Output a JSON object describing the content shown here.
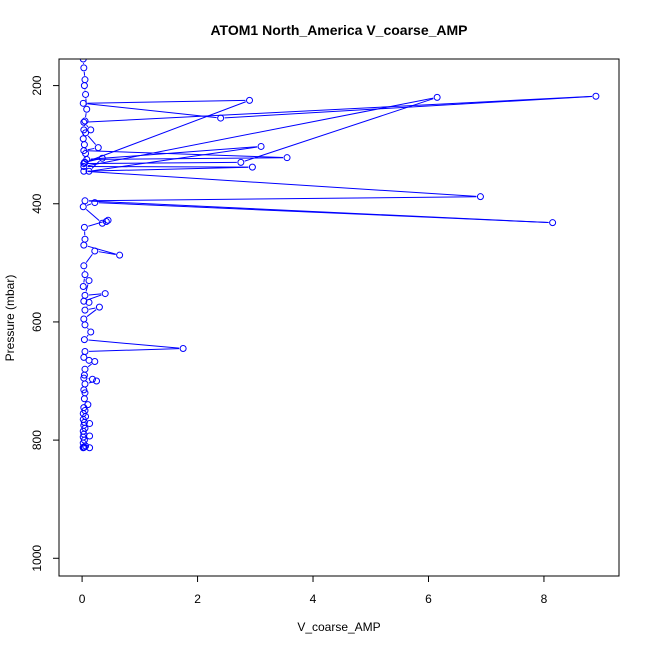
{
  "chart_data": {
    "type": "scatter",
    "title": "ATOM1 North_America V_coarse_AMP",
    "xlabel": "V_coarse_AMP",
    "ylabel": "Pressure (mbar)",
    "xlim": [
      -0.4,
      9.3
    ],
    "ylim": [
      1030,
      155
    ],
    "y_reversed": true,
    "xticks": [
      "0",
      "2",
      "4",
      "6",
      "8"
    ],
    "yticks": [
      "200",
      "400",
      "600",
      "800",
      "1000"
    ],
    "series_color": "#0000ff",
    "marker": "open-circle",
    "connected": true,
    "series": [
      {
        "x": [
          0.02,
          0.03,
          0.05,
          0.04,
          0.06,
          0.08,
          0.05,
          0.03,
          0.02,
          0.04,
          0.06,
          0.05,
          2.9,
          0.02,
          2.4,
          8.9,
          0.03,
          0.15,
          0.06,
          0.28,
          0.03,
          3.55,
          0.08,
          3.1,
          0.12,
          0.35,
          0.04,
          0.03,
          2.75,
          6.15,
          0.03,
          2.95,
          0.03,
          6.9,
          0.05,
          8.15,
          0.22,
          0.02,
          0.35,
          0.42,
          0.45,
          0.04,
          0.05,
          0.03,
          0.65,
          0.22,
          0.03,
          0.05,
          0.02,
          0.12,
          0.05,
          0.4,
          0.03,
          0.12,
          0.05,
          0.3,
          0.03,
          0.05,
          0.15,
          0.04,
          1.75,
          0.05,
          0.03,
          0.12,
          0.22,
          0.05,
          0.04,
          0.03,
          0.18,
          0.25,
          0.05,
          0.03,
          0.05,
          0.04,
          0.1,
          0.03,
          0.05,
          0.02,
          0.06,
          0.02,
          0.04,
          0.13,
          0.03,
          0.05,
          0.02,
          0.03,
          0.13,
          0.02,
          0.04,
          0.02,
          0.06,
          0.02,
          0.04,
          0.03,
          0.02,
          0.13
        ],
        "y": [
          155,
          170,
          190,
          200,
          215,
          240,
          260,
          275,
          290,
          300,
          315,
          330,
          225,
          230,
          255,
          218,
          262,
          275,
          280,
          305,
          310,
          322,
          325,
          303,
          345,
          323,
          330,
          332,
          330,
          220,
          337,
          338,
          345,
          388,
          395,
          432,
          398,
          405,
          433,
          430,
          428,
          440,
          460,
          470,
          487,
          480,
          505,
          520,
          540,
          530,
          555,
          552,
          565,
          567,
          580,
          575,
          595,
          605,
          617,
          630,
          645,
          650,
          660,
          665,
          667,
          680,
          690,
          695,
          697,
          700,
          705,
          715,
          720,
          730,
          740,
          745,
          750,
          755,
          760,
          765,
          770,
          772,
          775,
          780,
          785,
          790,
          793,
          795,
          800,
          805,
          810,
          812,
          812,
          812,
          813,
          813
        ]
      }
    ]
  }
}
